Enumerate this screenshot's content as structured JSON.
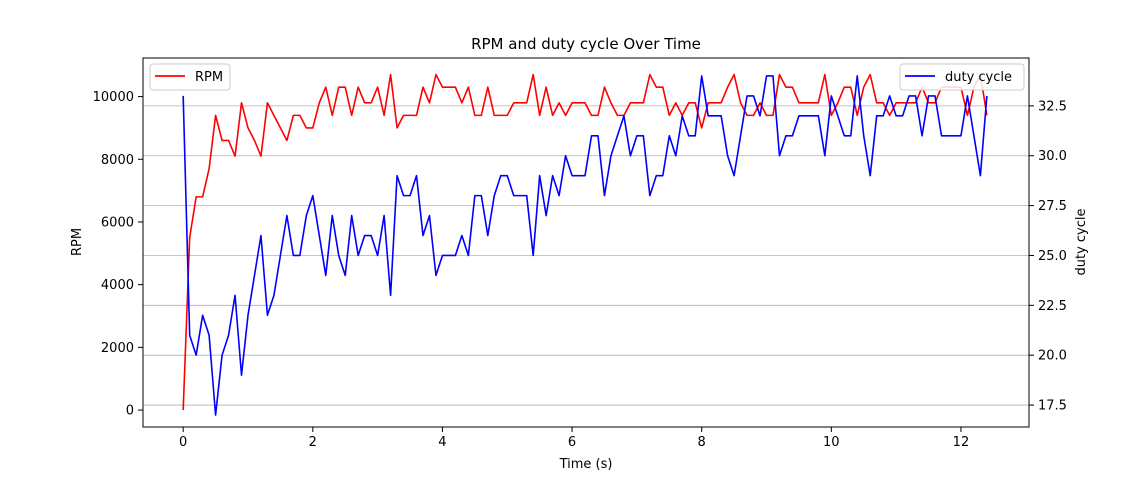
{
  "chart_data": {
    "type": "line",
    "title": "RPM and duty cycle Over Time",
    "xlabel": "Time (s)",
    "ylabel_left": "RPM",
    "ylabel_right": "duty cycle",
    "xlim": [
      -0.62,
      13.05
    ],
    "ylim_left": [
      -540,
      11230
    ],
    "ylim_right": [
      16.4,
      34.9
    ],
    "xticks": [
      0,
      2,
      4,
      6,
      8,
      10,
      12
    ],
    "yticks_left": [
      0,
      2000,
      4000,
      6000,
      8000,
      10000
    ],
    "yticks_right": [
      17.5,
      20.0,
      22.5,
      25.0,
      27.5,
      30.0,
      32.5
    ],
    "grid": "horizontal lines at right-axis ticks",
    "legend_left": "top-left",
    "legend_right": "top-right",
    "x_step": 0.1,
    "series": [
      {
        "name": "RPM",
        "axis": "left",
        "color": "#ff0000",
        "values": [
          0,
          5500,
          6800,
          6800,
          7700,
          9400,
          8600,
          8600,
          8100,
          9800,
          9000,
          8600,
          8100,
          9800,
          9400,
          9000,
          8600,
          9400,
          9400,
          9000,
          9000,
          9800,
          10300,
          9400,
          10300,
          10300,
          9400,
          10300,
          9800,
          9800,
          10300,
          9400,
          10700,
          9000,
          9400,
          9400,
          9400,
          10300,
          9800,
          10700,
          10300,
          10300,
          10300,
          9800,
          10300,
          9400,
          9400,
          10300,
          9400,
          9400,
          9400,
          9800,
          9800,
          9800,
          10700,
          9400,
          10300,
          9400,
          9800,
          9400,
          9800,
          9800,
          9800,
          9400,
          9400,
          10300,
          9800,
          9400,
          9400,
          9800,
          9800,
          9800,
          10700,
          10300,
          10300,
          9400,
          9800,
          9400,
          9800,
          9800,
          9000,
          9800,
          9800,
          9800,
          10300,
          10700,
          9800,
          9400,
          9400,
          9800,
          9400,
          9400,
          10700,
          10300,
          10300,
          9800,
          9800,
          9800,
          9800,
          10700,
          9400,
          9800,
          10300,
          10300,
          9400,
          10300,
          10700,
          9800,
          9800,
          9400,
          9800,
          9800,
          9800,
          9800,
          10300,
          9800,
          9800,
          10300,
          10300,
          10300,
          10300,
          9400,
          10300,
          10700,
          9400
        ]
      },
      {
        "name": "duty cycle",
        "axis": "right",
        "color": "#0000ff",
        "values": [
          33,
          21,
          20,
          22,
          21,
          17,
          20,
          21,
          23,
          19,
          22,
          24,
          26,
          22,
          23,
          25,
          27,
          25,
          25,
          27,
          28,
          26,
          24,
          27,
          25,
          24,
          27,
          25,
          26,
          26,
          25,
          27,
          23,
          29,
          28,
          28,
          29,
          26,
          27,
          24,
          25,
          25,
          25,
          26,
          25,
          28,
          28,
          26,
          28,
          29,
          29,
          28,
          28,
          28,
          25,
          29,
          27,
          29,
          28,
          30,
          29,
          29,
          29,
          31,
          31,
          28,
          30,
          31,
          32,
          30,
          31,
          31,
          28,
          29,
          29,
          31,
          30,
          32,
          31,
          31,
          34,
          32,
          32,
          32,
          30,
          29,
          31,
          33,
          33,
          32,
          34,
          34,
          30,
          31,
          31,
          32,
          32,
          32,
          32,
          30,
          33,
          32,
          31,
          31,
          34,
          31,
          29,
          32,
          32,
          33,
          32,
          32,
          33,
          33,
          31,
          33,
          33,
          31,
          31,
          31,
          31,
          33,
          31,
          29,
          33
        ]
      }
    ]
  }
}
